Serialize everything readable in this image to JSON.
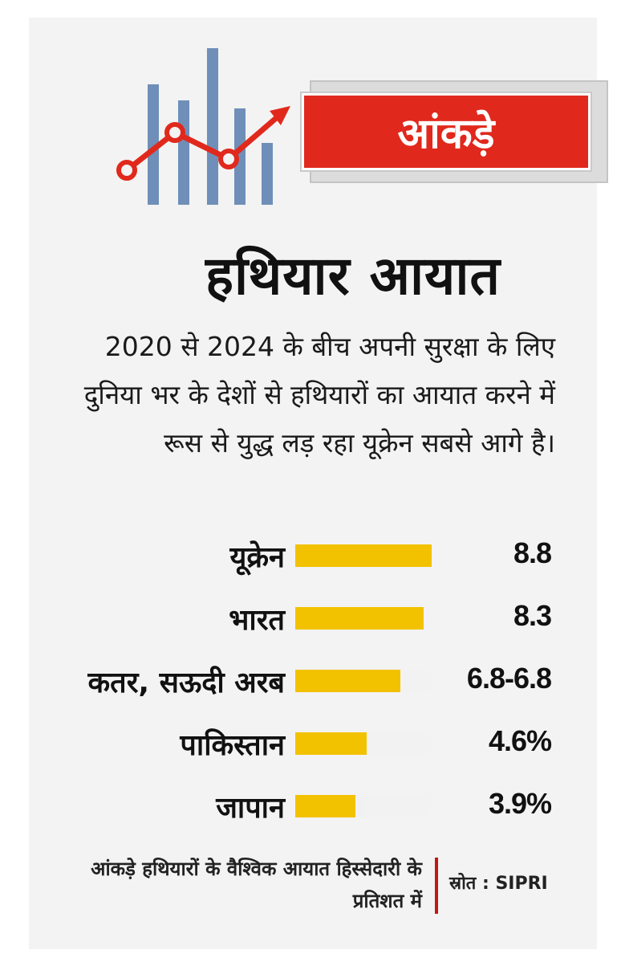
{
  "badge": "आंकड़े",
  "logo": {
    "icon": "rising-chart-icon",
    "bar_color": "#6f8fb8",
    "line_color": "#e0291c"
  },
  "chart_data": {
    "type": "bar",
    "orientation": "horizontal",
    "title": "हथियार आयात",
    "subtitle": "2020 से 2024 के बीच अपनी सुरक्षा के लिए दुनिया भर के देशों से हथियारों का आयात करने में रूस से युद्ध लड़ रहा यूक्रेन सबसे आगे है।",
    "categories": [
      "यूक्रेन",
      "भारत",
      "कतर, सऊदी अरब",
      "पाकिस्तान",
      "जापान"
    ],
    "values": [
      8.8,
      8.3,
      6.8,
      4.6,
      3.9
    ],
    "value_labels": [
      "8.8",
      "8.3",
      "6.8-6.8",
      "4.6%",
      "3.9%"
    ],
    "xlim": [
      0,
      10
    ],
    "bar_color": "#f2c200",
    "grid": false,
    "note": "आंकड़े हथियारों के वैश्विक आयात हिस्सेदारी के प्रतिशत में",
    "source": "स्रोत : SIPRI"
  }
}
